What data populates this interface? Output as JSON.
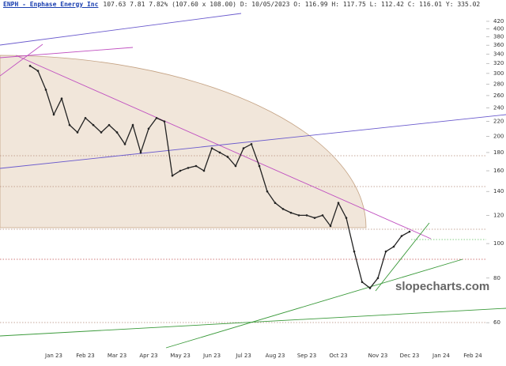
{
  "chart_data": {
    "type": "line",
    "title": "ENPH - Enphase Energy Inc",
    "subtitle": "107.63 7.81 7.82% (107.60 x 108.00) D: 10/05/2023 O: 116.99 H: 117.75 L: 112.42 C: 116.01 Y: 335.02",
    "watermark": "slopecharts.com",
    "categories": [
      null,
      null,
      null,
      "Jan 23",
      null,
      null,
      null,
      "Feb 23",
      null,
      null,
      null,
      "Mar 23",
      null,
      null,
      null,
      "Apr 23",
      null,
      null,
      null,
      "May 23",
      null,
      null,
      null,
      "Jun 23",
      null,
      null,
      null,
      "Jul 23",
      null,
      null,
      null,
      "Aug 23",
      null,
      null,
      null,
      "Sep 23",
      null,
      null,
      null,
      "Oct 23",
      null,
      null,
      null,
      null,
      "Nov 23",
      null,
      null,
      null,
      "Dec 23",
      null,
      null,
      null,
      "Jan 24",
      null,
      null,
      null,
      "Feb 24",
      null
    ],
    "series": [
      {
        "name": "ENPH",
        "color": "#222222",
        "values": [
          315,
          305,
          270,
          230,
          255,
          215,
          205,
          225,
          215,
          205,
          215,
          205,
          190,
          215,
          180,
          210,
          225,
          220,
          155,
          160,
          163,
          165,
          160,
          185,
          180,
          175,
          165,
          185,
          190,
          165,
          140,
          130,
          125,
          122,
          120,
          120,
          118,
          120,
          112,
          130,
          118,
          95,
          78,
          75,
          80,
          95,
          98,
          105,
          108,
          null,
          null,
          null,
          null,
          null,
          null,
          null,
          null,
          null
        ]
      }
    ],
    "ylim": [
      51,
      482
    ],
    "ylog": true,
    "yticks": [
      60,
      80,
      100,
      120,
      140,
      160,
      180,
      200,
      220,
      240,
      260,
      280,
      300,
      320,
      340,
      360,
      380,
      400,
      420
    ]
  }
}
